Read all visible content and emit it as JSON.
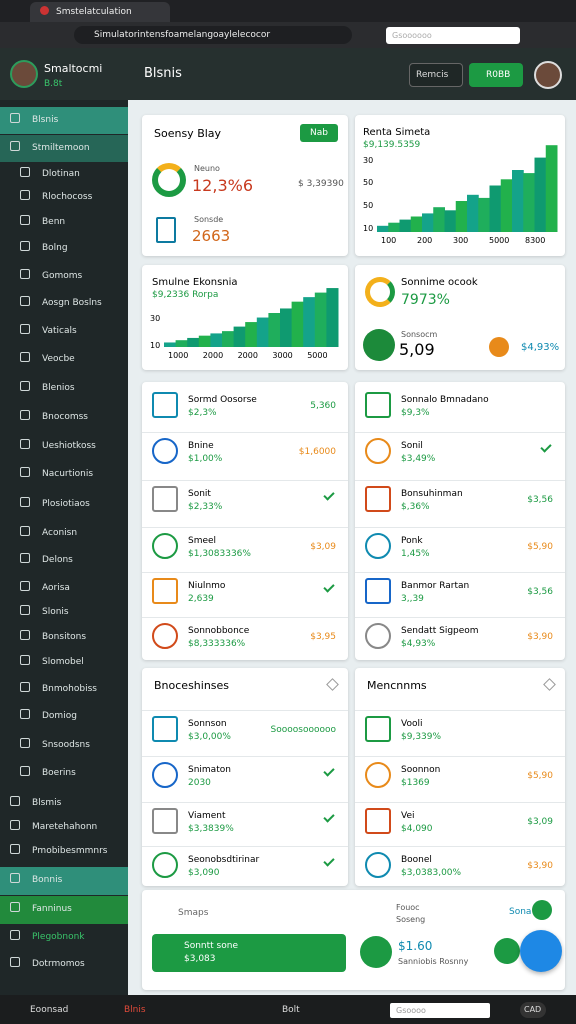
{
  "browser": {
    "tab_title": "Smstelatculation",
    "url": "Simulatorintensfoamelangoaylelecocor",
    "search_placeholder": "Gsoooooo"
  },
  "header": {
    "user_name": "Smaltocmi",
    "user_status": "B.8t",
    "title": "Blsnis",
    "button": "Remcis",
    "action_button": "R0BB"
  },
  "sidebar": {
    "items": [
      "Blsnis",
      "Stmiltemoon",
      "Dlotinan",
      "Rlochocoss",
      "Benn",
      "Bolng",
      "Gomoms",
      "Aosgn Boslns",
      "Vaticals",
      "Veocbe",
      "Blenios",
      "Bnocomss",
      "Ueshiotkoss",
      "Nacurtionis",
      "Plosiotiaos",
      "Aconisn",
      "Delons",
      "Aorisa",
      "Slonis",
      "Bonsitons",
      "Slomobel",
      "Bnmohobiss",
      "Domiog",
      "Snsoodsns",
      "Boerins",
      "Blsmis",
      "Maretehahonn",
      "Pmobibesmmnrs",
      "Bonnis",
      "Fanninus",
      "Plegobnonk",
      "Dotrmomos"
    ]
  },
  "summary_card": {
    "title": "Soensy Blay",
    "button": "Nab",
    "metric_1_label": "Neuno",
    "metric_1_value": "12,3%6",
    "metric_1_side": "$ 3,39390",
    "metric_2_label": "Sonsde",
    "metric_2_value": "2663"
  },
  "chart_1": {
    "title": "Renta Simeta",
    "subtitle": "$9,139.5359",
    "ylim": [
      0,
      60
    ],
    "y_labels": [
      "30",
      "50",
      "50",
      "10"
    ],
    "x_labels": [
      "100",
      "200",
      "300",
      "5000",
      "8300"
    ],
    "values": [
      4,
      6,
      8,
      10,
      12,
      16,
      14,
      20,
      24,
      22,
      30,
      34,
      40,
      38,
      48,
      56
    ]
  },
  "chart_2": {
    "title": "Smulne Ekonsnia",
    "subtitle": "$9,2336 Rorpa",
    "ylim": [
      0,
      60
    ],
    "y_labels": [
      "30",
      "10"
    ],
    "x_labels": [
      "1000",
      "2000",
      "2000",
      "3000",
      "5000"
    ],
    "values": [
      4,
      6,
      8,
      10,
      12,
      14,
      18,
      22,
      26,
      30,
      34,
      40,
      44,
      48,
      52
    ]
  },
  "ratio_card": {
    "title": "Sonnime ocook",
    "value": "7973%",
    "metric_label": "Sonsocm",
    "metric_value": "5,09",
    "side_value": "$4,93%"
  },
  "list_left": {
    "rows": [
      {
        "name": "Sormd Oosorse",
        "sub": "$2,3%",
        "right": "5,360"
      },
      {
        "name": "Bnine",
        "sub": "$1,00%",
        "right": "$1,6000"
      },
      {
        "name": "Sonit",
        "sub": "$2,33%",
        "right": ""
      },
      {
        "name": "Smeel",
        "sub": "$1,3083336%",
        "right": "$3,09"
      },
      {
        "name": "Niulnmo",
        "sub": "2,639",
        "right": ""
      },
      {
        "name": "Sonnobbonce",
        "sub": "$8,333336%",
        "right": "$3,95"
      }
    ]
  },
  "list_right": {
    "rows": [
      {
        "name": "Sonnalo Bmnadano",
        "sub": "$9,3%",
        "right": ""
      },
      {
        "name": "Sonil",
        "sub": "$3,49%",
        "right": ""
      },
      {
        "name": "Bonsuhinman",
        "sub": "$,36%",
        "right": "$3,56"
      },
      {
        "name": "Ponk",
        "sub": "1,45%",
        "right": "$5,90"
      },
      {
        "name": "Banmor Rartan",
        "sub": "3,,39",
        "right": "$3,56"
      },
      {
        "name": "Sendatt Sigpeom",
        "sub": "$4,93%",
        "right": "$3,90"
      }
    ]
  },
  "panel_left": {
    "title": "Bnoceshinses",
    "rows": [
      {
        "name": "Sonnson",
        "sub": "$3,0,00%",
        "right": "Soooosoooooo"
      },
      {
        "name": "Snimaton",
        "sub": "2030",
        "right": ""
      },
      {
        "name": "Viament",
        "sub": "$3,3839%",
        "right": ""
      },
      {
        "name": "Seonobsdtirinar",
        "sub": "$3,090",
        "right": ""
      }
    ]
  },
  "panel_right": {
    "title": "Mencnnms",
    "rows": [
      {
        "name": "Vooli",
        "sub": "$9,339%",
        "right": ""
      },
      {
        "name": "Soonnon",
        "sub": "$1369",
        "right": "$5,90"
      },
      {
        "name": "Vei",
        "sub": "$4,090",
        "right": "$3,09"
      },
      {
        "name": "Boonel",
        "sub": "$3,0383,00%",
        "right": "$3,90"
      }
    ]
  },
  "footer_card": {
    "left_label": "Smaps",
    "center_title": "Fouoc",
    "center_sub": "Soseng",
    "right_label": "Sona",
    "button_title": "Sonntt sone",
    "button_sub": "$3,083",
    "value": "$1.60",
    "value_sub": "Sanniobis Rosnny"
  },
  "taskbar": {
    "item_1": "Eoonsad",
    "item_2": "Blnis",
    "item_3": "Bolt",
    "search": "Gsoooo",
    "badge": "CAD"
  }
}
